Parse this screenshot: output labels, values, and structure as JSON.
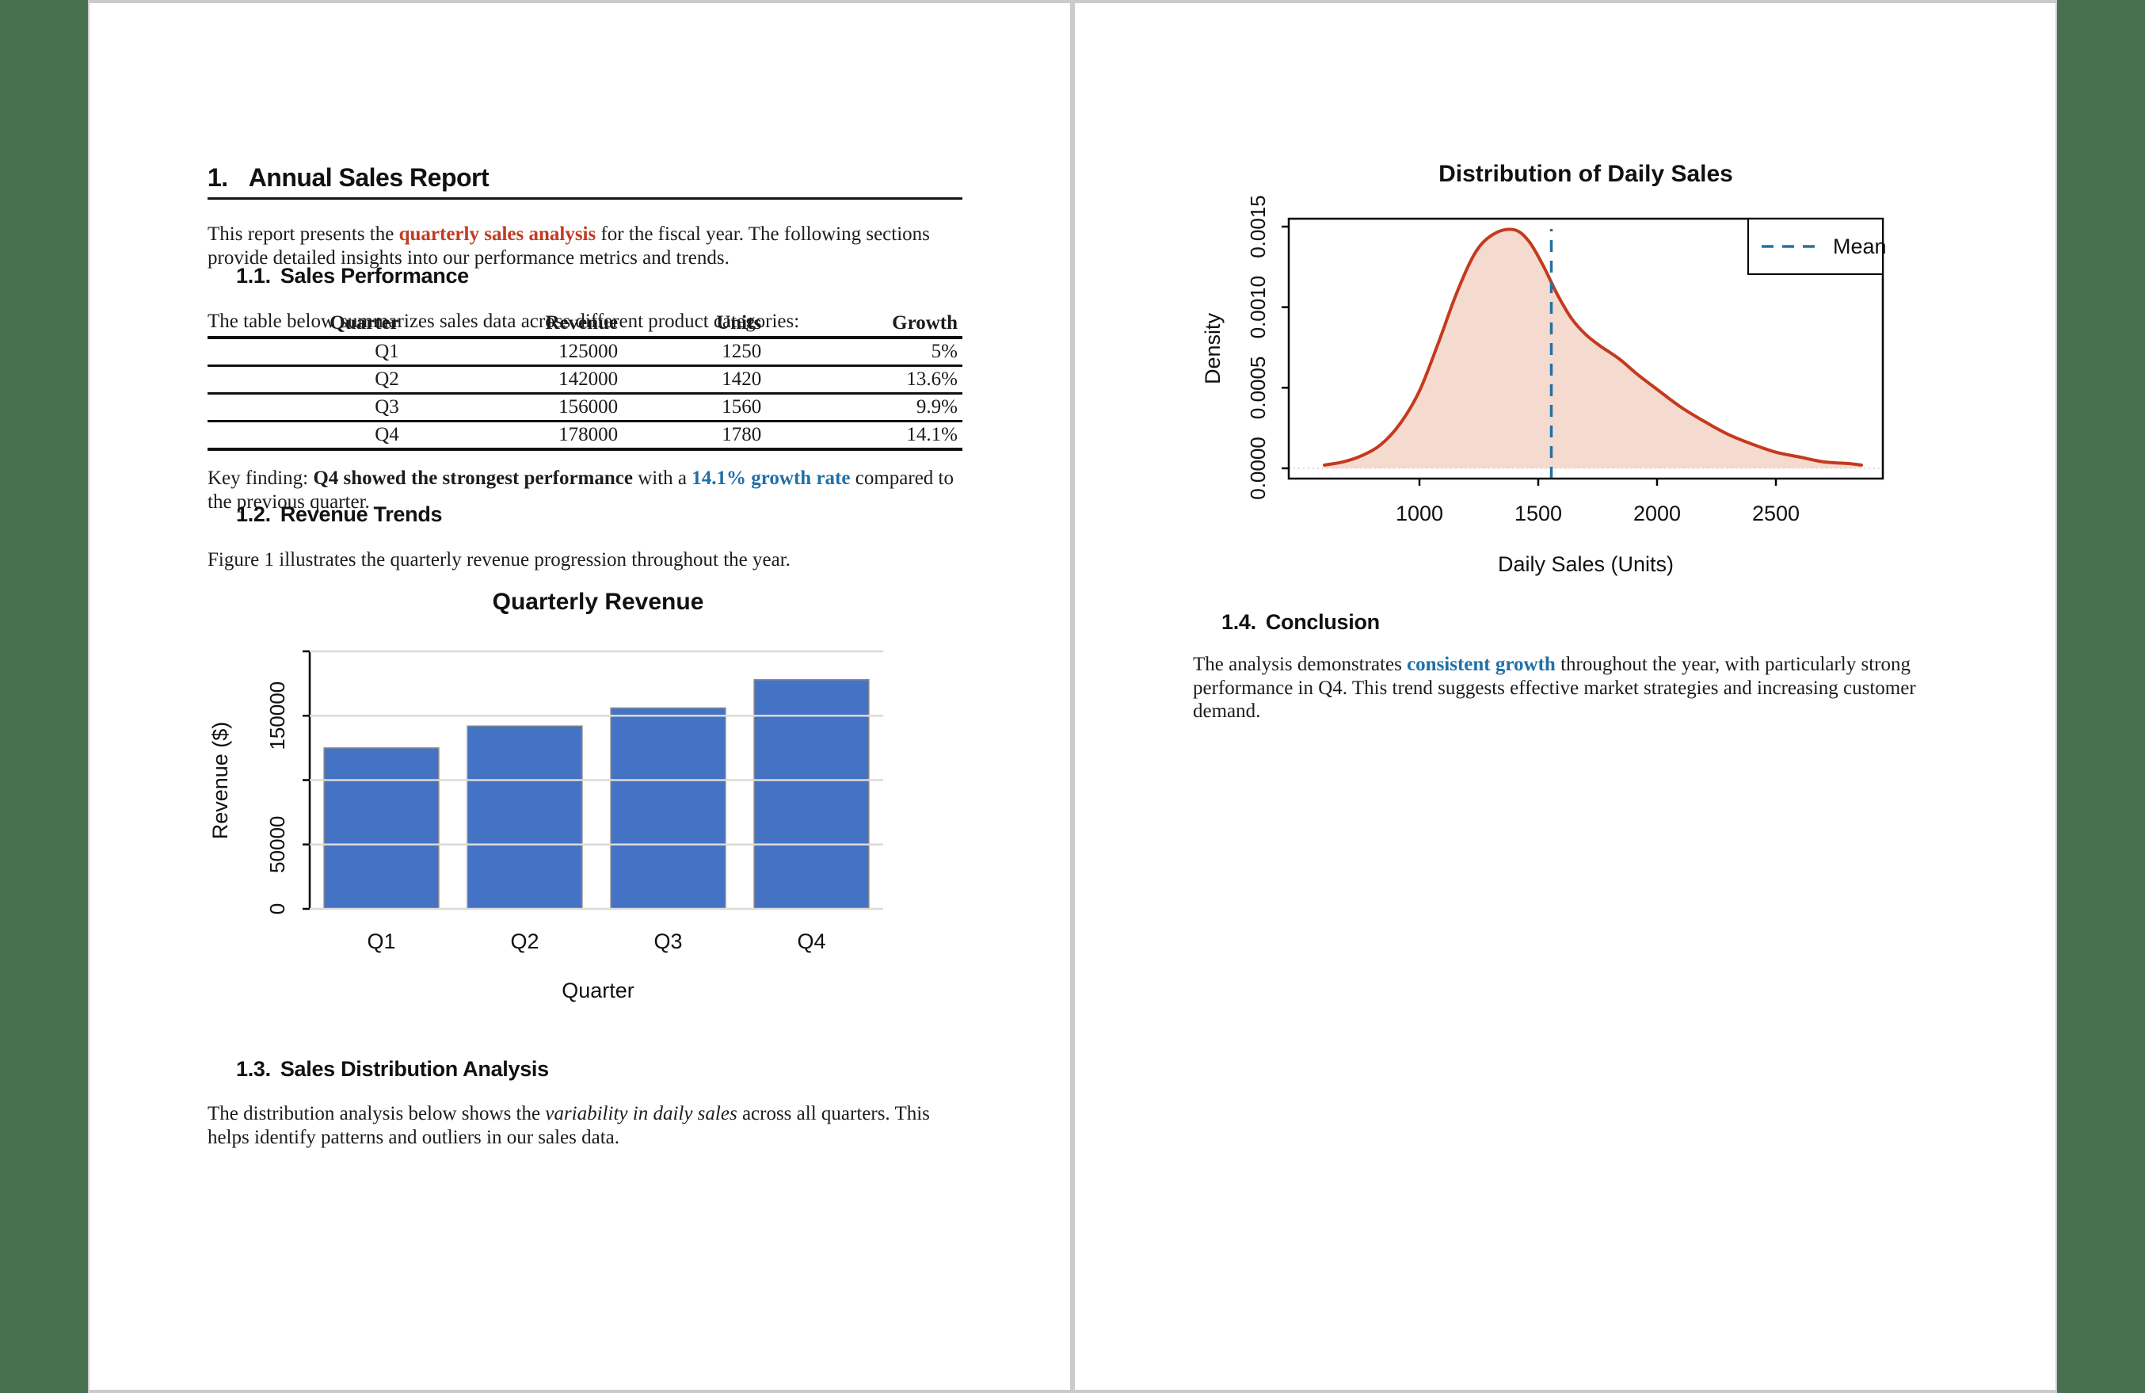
{
  "window": {
    "background_color": "#47714E",
    "frame_color": "#CBCBCB",
    "page_color": "#FFFFFF"
  },
  "page1": {
    "title_number": "1.",
    "title_text": "Annual Sales Report",
    "intro": {
      "pre": "This report presents the ",
      "highlight": "quarterly sales analysis",
      "post": " for the fiscal year. The following sections provide detailed insights into our performance metrics and trends."
    },
    "section_1_1": {
      "number": "1.1.",
      "heading": "Sales Performance",
      "lead": "The table below summarizes sales data across different product categories:"
    },
    "table": {
      "headers": [
        "Quarter",
        "Revenue",
        "Units",
        "Growth"
      ],
      "rows": [
        [
          "Q1",
          "125000",
          "1250",
          "5%"
        ],
        [
          "Q2",
          "142000",
          "1420",
          "13.6%"
        ],
        [
          "Q3",
          "156000",
          "1560",
          "9.9%"
        ],
        [
          "Q4",
          "178000",
          "1780",
          "14.1%"
        ]
      ]
    },
    "key_finding": {
      "label": "Key finding: ",
      "strong": "Q4 showed the strongest performance",
      "mid": " with a ",
      "metric": "14.1% growth rate",
      "post": " compared to the previous quarter."
    },
    "section_1_2": {
      "number": "1.2.",
      "heading": "Revenue Trends",
      "lead": "Figure 1 illustrates the quarterly revenue progression throughout the year."
    },
    "section_1_3": {
      "number": "1.3.",
      "heading": "Sales Distribution Analysis",
      "lead_pre": "The distribution analysis below shows the ",
      "lead_italic": "variability in daily sales",
      "lead_post": " across all quarters. This helps identify patterns and outliers in our sales data."
    }
  },
  "page2": {
    "section_1_4": {
      "number": "1.4.",
      "heading": "Conclusion",
      "pre": "The analysis demonstrates ",
      "highlight": "consistent growth",
      "post": " throughout the year, with particularly strong performance in Q4. This trend suggests effective market strategies and increasing customer demand."
    }
  },
  "accent_colors": {
    "red_text": "#C23B22",
    "blue_text": "#2070A8"
  },
  "chart_data": [
    {
      "type": "bar",
      "title": "Quarterly Revenue",
      "xlabel": "Quarter",
      "ylabel": "Revenue ($)",
      "categories": [
        "Q1",
        "Q2",
        "Q3",
        "Q4"
      ],
      "values": [
        125000,
        142000,
        156000,
        178000
      ],
      "ylim": [
        0,
        200000
      ],
      "yticks": [
        0,
        50000,
        100000,
        150000,
        200000
      ],
      "ytick_labels": [
        "0",
        "50000",
        "",
        "150000",
        ""
      ],
      "grid": true,
      "grid_color": "#DEDAD6",
      "bar_color": "#4473C5",
      "bar_border_color": "#8C8C8C",
      "legend": null
    },
    {
      "type": "area",
      "title": "Distribution of Daily Sales",
      "xlabel": "Daily Sales (Units)",
      "ylabel": "Density",
      "xlim": [
        450,
        2950
      ],
      "ylim": [
        0,
        0.0015
      ],
      "xticks": [
        1000,
        1500,
        2000,
        2500
      ],
      "xtick_labels": [
        "1000",
        "1500",
        "2000",
        "2500"
      ],
      "yticks": [
        0,
        0.0005,
        0.001,
        0.0015
      ],
      "ytick_labels": [
        "0.0000",
        "0.0005",
        "0.0010",
        "0.0015"
      ],
      "line_color": "#C43A1E",
      "fill_color": "#F4DACF",
      "mean": 1555,
      "mean_line_color": "#2471A3",
      "legend": [
        {
          "label": "Mean",
          "color": "#2471A3",
          "style": "dashed"
        }
      ],
      "legend_position": "top-right",
      "points": [
        [
          600,
          2e-05
        ],
        [
          680,
          4e-05
        ],
        [
          760,
          8e-05
        ],
        [
          840,
          0.00015
        ],
        [
          920,
          0.00028
        ],
        [
          1000,
          0.00048
        ],
        [
          1080,
          0.00078
        ],
        [
          1160,
          0.0011
        ],
        [
          1240,
          0.00135
        ],
        [
          1320,
          0.00146
        ],
        [
          1400,
          0.00148
        ],
        [
          1460,
          0.00141
        ],
        [
          1520,
          0.00126
        ],
        [
          1580,
          0.00108
        ],
        [
          1640,
          0.00093
        ],
        [
          1700,
          0.00083
        ],
        [
          1760,
          0.00076
        ],
        [
          1840,
          0.00068
        ],
        [
          1920,
          0.00058
        ],
        [
          2000,
          0.00049
        ],
        [
          2100,
          0.00038
        ],
        [
          2200,
          0.00029
        ],
        [
          2300,
          0.00021
        ],
        [
          2400,
          0.00015
        ],
        [
          2500,
          0.0001
        ],
        [
          2600,
          7e-05
        ],
        [
          2700,
          4e-05
        ],
        [
          2800,
          3e-05
        ],
        [
          2860,
          2e-05
        ]
      ]
    }
  ]
}
